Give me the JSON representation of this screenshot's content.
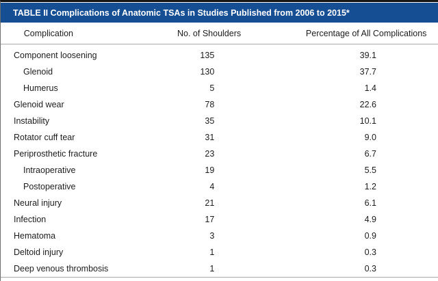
{
  "title": "TABLE II Complications of Anatomic TSAs in Studies Published from 2006 to 2015*",
  "table": {
    "columns": [
      "Complication",
      "No. of Shoulders",
      "Percentage of All Complications"
    ],
    "rows": [
      {
        "label": "Component loosening",
        "shoulders": "135",
        "percentage": "39.1"
      },
      {
        "label": "Glenoid",
        "shoulders": "130",
        "percentage": "37.7"
      },
      {
        "label": "Humerus",
        "shoulders": "5",
        "percentage": "1.4"
      },
      {
        "label": "Glenoid wear",
        "shoulders": "78",
        "percentage": "22.6"
      },
      {
        "label": "Instability",
        "shoulders": "35",
        "percentage": "10.1"
      },
      {
        "label": "Rotator cuff tear",
        "shoulders": "31",
        "percentage": "9.0"
      },
      {
        "label": "Periprosthetic fracture",
        "shoulders": "23",
        "percentage": "6.7"
      },
      {
        "label": "Intraoperative",
        "shoulders": "19",
        "percentage": "5.5"
      },
      {
        "label": "Postoperative",
        "shoulders": "4",
        "percentage": "1.2"
      },
      {
        "label": "Neural injury",
        "shoulders": "21",
        "percentage": "6.1"
      },
      {
        "label": "Infection",
        "shoulders": "17",
        "percentage": "4.9"
      },
      {
        "label": "Hematoma",
        "shoulders": "3",
        "percentage": "0.9"
      },
      {
        "label": "Deltoid injury",
        "shoulders": "1",
        "percentage": "0.3"
      },
      {
        "label": "Deep venous thrombosis",
        "shoulders": "1",
        "percentage": "0.3"
      }
    ]
  },
  "colors": {
    "title_bar": "#164e94",
    "title_text": "#ffffff",
    "rule_gray": "#a8a8a8",
    "top_rule": "#161616",
    "body_text": "#1c1c1c"
  }
}
